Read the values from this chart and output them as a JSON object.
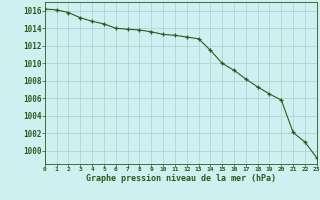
{
  "x": [
    0,
    1,
    2,
    3,
    4,
    5,
    6,
    7,
    8,
    9,
    10,
    11,
    12,
    13,
    14,
    15,
    16,
    17,
    18,
    19,
    20,
    21,
    22,
    23
  ],
  "y": [
    1016.2,
    1016.1,
    1015.8,
    1015.2,
    1014.8,
    1014.5,
    1014.0,
    1013.9,
    1013.8,
    1013.6,
    1013.3,
    1013.2,
    1013.0,
    1012.8,
    1011.5,
    1010.0,
    1009.2,
    1008.2,
    1007.3,
    1006.5,
    1005.8,
    1002.1,
    1001.0,
    999.2
  ],
  "line_color": "#2d5a1b",
  "marker": "+",
  "bg_color": "#cff0f0",
  "grid_color": "#aad8d8",
  "label_color": "#2d5a1b",
  "xlabel": "Graphe pression niveau de la mer (hPa)",
  "xlim": [
    0,
    23
  ],
  "ylim": [
    998.5,
    1017.0
  ],
  "yticks": [
    1000,
    1002,
    1004,
    1006,
    1008,
    1010,
    1012,
    1014,
    1016
  ],
  "xticks": [
    0,
    1,
    2,
    3,
    4,
    5,
    6,
    7,
    8,
    9,
    10,
    11,
    12,
    13,
    14,
    15,
    16,
    17,
    18,
    19,
    20,
    21,
    22,
    23
  ]
}
